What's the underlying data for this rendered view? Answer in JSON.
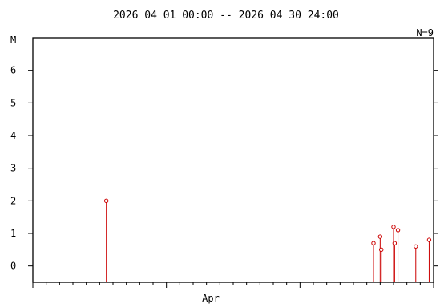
{
  "chart_data": {
    "type": "scatter",
    "title": "2026 04 01 00:00 -- 2026 04 30 24:00",
    "count_label": "N=9",
    "ylabel": "M",
    "xlabel": "",
    "x_tick_label": "Apr",
    "xlim": [
      "2026-04-01T00:00",
      "2026-05-01T00:00"
    ],
    "ylim": [
      -0.5,
      7
    ],
    "yticks": [
      0,
      1,
      2,
      3,
      4,
      5,
      6
    ],
    "grid": false,
    "marker_color": "#cc0000",
    "points": [
      {
        "t": "2026-04-06T12:00",
        "m": 2.0
      },
      {
        "t": "2026-04-26T12:00",
        "m": 0.7
      },
      {
        "t": "2026-04-27T00:00",
        "m": 0.9
      },
      {
        "t": "2026-04-27T02:00",
        "m": 0.5
      },
      {
        "t": "2026-04-28T00:00",
        "m": 1.2
      },
      {
        "t": "2026-04-28T02:00",
        "m": 0.7
      },
      {
        "t": "2026-04-28T08:00",
        "m": 1.1
      },
      {
        "t": "2026-04-29T16:00",
        "m": 0.6
      },
      {
        "t": "2026-04-30T16:00",
        "m": 0.8
      }
    ]
  }
}
